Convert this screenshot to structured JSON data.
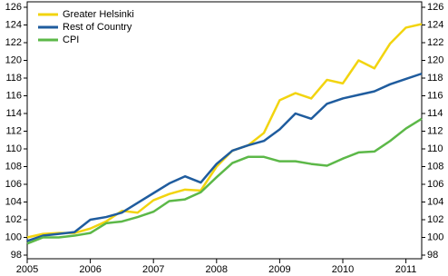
{
  "chart_data": {
    "type": "line",
    "categories": [
      "2005",
      null,
      null,
      null,
      "2006",
      null,
      null,
      null,
      "2007",
      null,
      null,
      null,
      "2008",
      null,
      null,
      null,
      "2009",
      null,
      null,
      null,
      "2010",
      null,
      null,
      null,
      "2011",
      null
    ],
    "series": [
      {
        "name": "Greater Helsinki",
        "color": "#f2d40f",
        "values": [
          100.0,
          100.4,
          100.5,
          100.5,
          101.0,
          101.8,
          103.0,
          102.8,
          104.2,
          104.9,
          105.4,
          105.3,
          108.0,
          109.8,
          110.4,
          111.8,
          115.5,
          116.3,
          115.7,
          117.8,
          117.4,
          120.0,
          119.1,
          121.9,
          123.7,
          124.1
        ]
      },
      {
        "name": "Rest of Country",
        "color": "#1f5c9e",
        "values": [
          99.6,
          100.2,
          100.4,
          100.6,
          102.0,
          102.3,
          102.8,
          103.9,
          105.0,
          106.1,
          106.9,
          106.2,
          108.3,
          109.8,
          110.4,
          110.9,
          112.2,
          114.0,
          113.4,
          115.1,
          115.7,
          116.1,
          116.5,
          117.3,
          117.9,
          118.5
        ]
      },
      {
        "name": "CPI",
        "color": "#5cb848",
        "values": [
          99.3,
          100.0,
          100.0,
          100.2,
          100.5,
          101.6,
          101.8,
          102.3,
          102.9,
          104.1,
          104.3,
          105.1,
          106.8,
          108.4,
          109.1,
          109.1,
          108.6,
          108.6,
          108.3,
          108.1,
          108.9,
          109.6,
          109.7,
          110.9,
          112.3,
          113.4
        ]
      }
    ],
    "ylim": [
      98,
      126
    ],
    "yticks": [
      98,
      100,
      102,
      104,
      106,
      108,
      110,
      112,
      114,
      116,
      118,
      120,
      122,
      124,
      126
    ],
    "y2lim": [
      98,
      126
    ],
    "y2ticks": [
      98,
      100,
      102,
      104,
      106,
      108,
      110,
      112,
      114,
      116,
      118,
      120,
      122,
      124,
      126
    ],
    "grid": false,
    "legend": "upper-left"
  }
}
